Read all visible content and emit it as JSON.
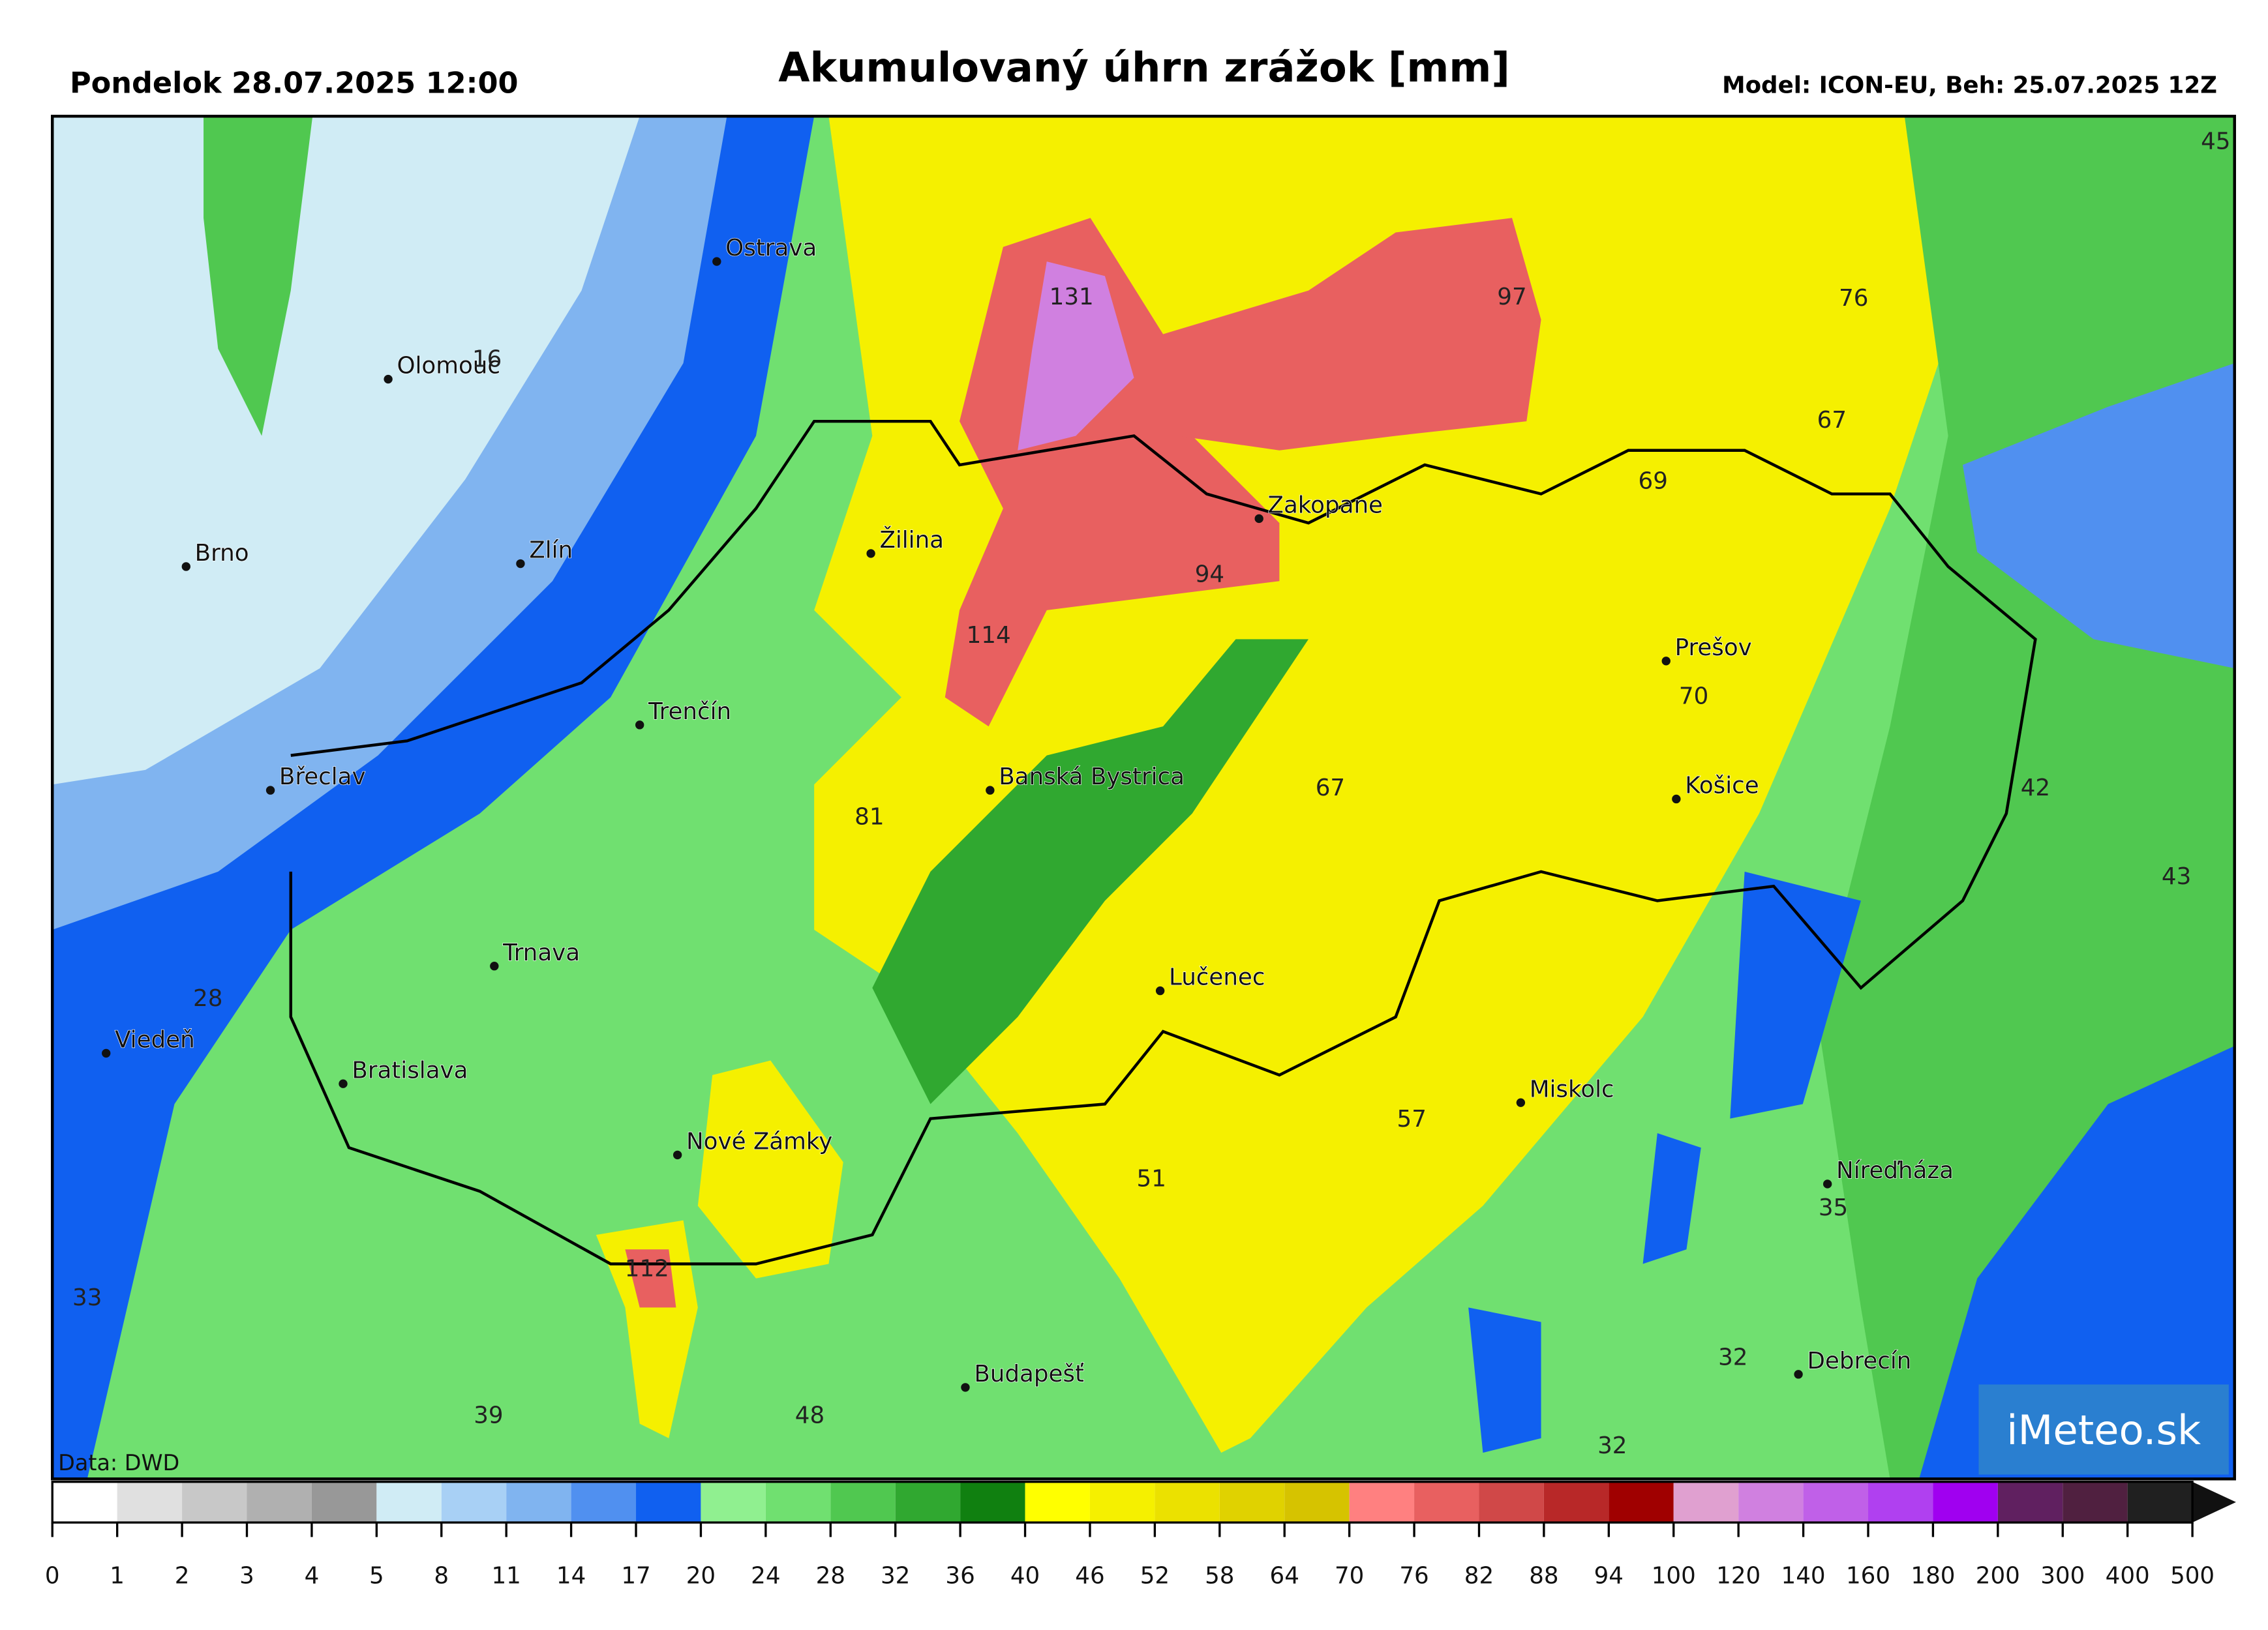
{
  "header": {
    "date": "Pondelok 28.07.2025 12:00",
    "title": "Akumulovaný úhrn zrážok [mm]",
    "model": "Model: ICON-EU, Beh: 25.07.2025 12Z"
  },
  "map": {
    "cities": [
      "Ostrava",
      "Olomouc",
      "Brno",
      "Zlín",
      "Žilina",
      "Zakopane",
      "Trenčín",
      "Břeclav",
      "Banská Bystrica",
      "Prešov",
      "Košice",
      "Trnava",
      "Lučenec",
      "Viedeň",
      "Bratislava",
      "Miskolc",
      "Nové Zámky",
      "Níreďháza",
      "Budapešť",
      "Debrecín"
    ],
    "values": [
      131,
      97,
      76,
      45,
      16,
      67,
      69,
      94,
      114,
      70,
      67,
      42,
      81,
      43,
      28,
      57,
      51,
      35,
      112,
      33,
      32,
      39,
      48,
      32
    ],
    "credit": "Data: DWD",
    "logo": "iMeteo.sk"
  },
  "colorbar": {
    "ticks": [
      0,
      1,
      2,
      3,
      4,
      5,
      8,
      11,
      14,
      17,
      20,
      24,
      28,
      32,
      36,
      40,
      46,
      52,
      58,
      64,
      70,
      76,
      82,
      88,
      94,
      100,
      120,
      140,
      160,
      180,
      200,
      300,
      400,
      500
    ],
    "colors": [
      "#ffffff",
      "#e0e0e0",
      "#c8c8c8",
      "#b0b0b0",
      "#989898",
      "#d0ecf5",
      "#a8d0f5",
      "#80b4f0",
      "#5090f0",
      "#1060f0",
      "#90f090",
      "#70e070",
      "#50c850",
      "#30a830",
      "#108010",
      "#ffff00",
      "#f5f000",
      "#ebe100",
      "#e0d200",
      "#d6c300",
      "#ff8080",
      "#e86060",
      "#d04848",
      "#b82828",
      "#a00000",
      "#e0a0d0",
      "#d080e0",
      "#c060e8",
      "#b040f0",
      "#a000f0",
      "#602060",
      "#502040",
      "#202020"
    ]
  }
}
